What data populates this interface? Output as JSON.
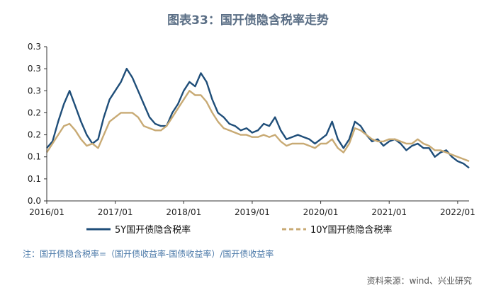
{
  "title": "图表33：国开债隐含税率走势",
  "note": "注：国开债隐含税率=（国开债收益率-国债收益率）/国开债收益率",
  "source": "资料来源：wind、兴业研究",
  "colors": {
    "series_5y": "#1f4e79",
    "series_10y": "#c8aa74",
    "axis": "#333333"
  },
  "chart_data": {
    "type": "line",
    "title": "图表33：国开债隐含税率走势",
    "xlabel": "",
    "ylabel": "",
    "x_tick_labels": [
      "2016/01",
      "2017/01",
      "2018/01",
      "2019/01",
      "2020/01",
      "2021/01",
      "2022/01"
    ],
    "x_range": [
      "2016/01",
      "2022/03"
    ],
    "y_tick_labels": [
      "0.0",
      "0.1",
      "0.1",
      "0.2",
      "0.2",
      "0.3",
      "0.3",
      "0.3"
    ],
    "ylim": [
      0,
      0.35
    ],
    "legend_position": "bottom",
    "grid": false,
    "series": [
      {
        "name": "5Y国开债隐含税率",
        "style": "solid",
        "points": [
          [
            "2016/01",
            0.12
          ],
          [
            "2016/02",
            0.135
          ],
          [
            "2016/03",
            0.18
          ],
          [
            "2016/04",
            0.22
          ],
          [
            "2016/05",
            0.25
          ],
          [
            "2016/06",
            0.215
          ],
          [
            "2016/07",
            0.18
          ],
          [
            "2016/08",
            0.15
          ],
          [
            "2016/09",
            0.13
          ],
          [
            "2016/10",
            0.14
          ],
          [
            "2016/11",
            0.19
          ],
          [
            "2016/12",
            0.23
          ],
          [
            "2017/01",
            0.25
          ],
          [
            "2017/02",
            0.27
          ],
          [
            "2017/03",
            0.3
          ],
          [
            "2017/04",
            0.28
          ],
          [
            "2017/05",
            0.25
          ],
          [
            "2017/06",
            0.22
          ],
          [
            "2017/07",
            0.19
          ],
          [
            "2017/08",
            0.175
          ],
          [
            "2017/09",
            0.17
          ],
          [
            "2017/10",
            0.17
          ],
          [
            "2017/11",
            0.2
          ],
          [
            "2017/12",
            0.22
          ],
          [
            "2018/01",
            0.25
          ],
          [
            "2018/02",
            0.27
          ],
          [
            "2018/03",
            0.26
          ],
          [
            "2018/04",
            0.29
          ],
          [
            "2018/05",
            0.27
          ],
          [
            "2018/06",
            0.23
          ],
          [
            "2018/07",
            0.2
          ],
          [
            "2018/08",
            0.19
          ],
          [
            "2018/09",
            0.175
          ],
          [
            "2018/10",
            0.17
          ],
          [
            "2018/11",
            0.16
          ],
          [
            "2018/12",
            0.165
          ],
          [
            "2019/01",
            0.155
          ],
          [
            "2019/02",
            0.16
          ],
          [
            "2019/03",
            0.175
          ],
          [
            "2019/04",
            0.17
          ],
          [
            "2019/05",
            0.19
          ],
          [
            "2019/06",
            0.16
          ],
          [
            "2019/07",
            0.14
          ],
          [
            "2019/08",
            0.145
          ],
          [
            "2019/09",
            0.15
          ],
          [
            "2019/10",
            0.145
          ],
          [
            "2019/11",
            0.14
          ],
          [
            "2019/12",
            0.13
          ],
          [
            "2020/01",
            0.14
          ],
          [
            "2020/02",
            0.15
          ],
          [
            "2020/03",
            0.18
          ],
          [
            "2020/04",
            0.14
          ],
          [
            "2020/05",
            0.12
          ],
          [
            "2020/06",
            0.14
          ],
          [
            "2020/07",
            0.18
          ],
          [
            "2020/08",
            0.17
          ],
          [
            "2020/09",
            0.15
          ],
          [
            "2020/10",
            0.135
          ],
          [
            "2020/11",
            0.14
          ],
          [
            "2020/12",
            0.125
          ],
          [
            "2021/01",
            0.135
          ],
          [
            "2021/02",
            0.14
          ],
          [
            "2021/03",
            0.13
          ],
          [
            "2021/04",
            0.115
          ],
          [
            "2021/05",
            0.125
          ],
          [
            "2021/06",
            0.13
          ],
          [
            "2021/07",
            0.12
          ],
          [
            "2021/08",
            0.12
          ],
          [
            "2021/09",
            0.1
          ],
          [
            "2021/10",
            0.11
          ],
          [
            "2021/11",
            0.115
          ],
          [
            "2021/12",
            0.1
          ],
          [
            "2022/01",
            0.09
          ],
          [
            "2022/02",
            0.085
          ],
          [
            "2022/03",
            0.075
          ]
        ]
      },
      {
        "name": "10Y国开债隐含税率",
        "style": "dashed",
        "points": [
          [
            "2016/01",
            0.11
          ],
          [
            "2016/02",
            0.13
          ],
          [
            "2016/03",
            0.15
          ],
          [
            "2016/04",
            0.17
          ],
          [
            "2016/05",
            0.175
          ],
          [
            "2016/06",
            0.16
          ],
          [
            "2016/07",
            0.14
          ],
          [
            "2016/08",
            0.125
          ],
          [
            "2016/09",
            0.13
          ],
          [
            "2016/10",
            0.12
          ],
          [
            "2016/11",
            0.15
          ],
          [
            "2016/12",
            0.18
          ],
          [
            "2017/01",
            0.19
          ],
          [
            "2017/02",
            0.2
          ],
          [
            "2017/03",
            0.2
          ],
          [
            "2017/04",
            0.2
          ],
          [
            "2017/05",
            0.19
          ],
          [
            "2017/06",
            0.17
          ],
          [
            "2017/07",
            0.165
          ],
          [
            "2017/08",
            0.16
          ],
          [
            "2017/09",
            0.16
          ],
          [
            "2017/10",
            0.17
          ],
          [
            "2017/11",
            0.19
          ],
          [
            "2017/12",
            0.21
          ],
          [
            "2018/01",
            0.23
          ],
          [
            "2018/02",
            0.25
          ],
          [
            "2018/03",
            0.24
          ],
          [
            "2018/04",
            0.24
          ],
          [
            "2018/05",
            0.225
          ],
          [
            "2018/06",
            0.2
          ],
          [
            "2018/07",
            0.18
          ],
          [
            "2018/08",
            0.165
          ],
          [
            "2018/09",
            0.16
          ],
          [
            "2018/10",
            0.155
          ],
          [
            "2018/11",
            0.15
          ],
          [
            "2018/12",
            0.15
          ],
          [
            "2019/01",
            0.145
          ],
          [
            "2019/02",
            0.145
          ],
          [
            "2019/03",
            0.15
          ],
          [
            "2019/04",
            0.145
          ],
          [
            "2019/05",
            0.15
          ],
          [
            "2019/06",
            0.135
          ],
          [
            "2019/07",
            0.125
          ],
          [
            "2019/08",
            0.13
          ],
          [
            "2019/09",
            0.13
          ],
          [
            "2019/10",
            0.13
          ],
          [
            "2019/11",
            0.125
          ],
          [
            "2019/12",
            0.12
          ],
          [
            "2020/01",
            0.13
          ],
          [
            "2020/02",
            0.13
          ],
          [
            "2020/03",
            0.14
          ],
          [
            "2020/04",
            0.12
          ],
          [
            "2020/05",
            0.11
          ],
          [
            "2020/06",
            0.13
          ],
          [
            "2020/07",
            0.165
          ],
          [
            "2020/08",
            0.16
          ],
          [
            "2020/09",
            0.15
          ],
          [
            "2020/10",
            0.14
          ],
          [
            "2020/11",
            0.135
          ],
          [
            "2020/12",
            0.135
          ],
          [
            "2021/01",
            0.14
          ],
          [
            "2021/02",
            0.14
          ],
          [
            "2021/03",
            0.135
          ],
          [
            "2021/04",
            0.13
          ],
          [
            "2021/05",
            0.13
          ],
          [
            "2021/06",
            0.14
          ],
          [
            "2021/07",
            0.13
          ],
          [
            "2021/08",
            0.125
          ],
          [
            "2021/09",
            0.115
          ],
          [
            "2021/10",
            0.115
          ],
          [
            "2021/11",
            0.11
          ],
          [
            "2021/12",
            0.105
          ],
          [
            "2022/01",
            0.1
          ],
          [
            "2022/02",
            0.095
          ],
          [
            "2022/03",
            0.09
          ]
        ]
      }
    ]
  }
}
